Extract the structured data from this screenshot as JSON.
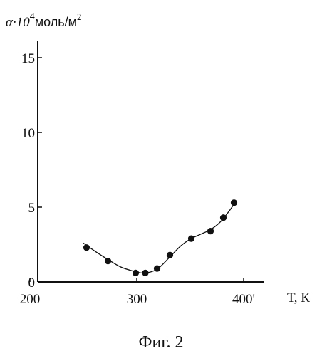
{
  "chart_data": {
    "type": "scatter",
    "title": "",
    "ylabel_prefix": "α·10",
    "ylabel_exponent": "4",
    "ylabel_unit": "моль/м",
    "ylabel_unit_exponent": "2",
    "xlabel": "Т, К",
    "xlim": [
      200,
      400
    ],
    "ylim": [
      0,
      15
    ],
    "xticks": [
      200,
      300,
      400
    ],
    "xtick_labels": [
      "200",
      "300",
      "400'"
    ],
    "yticks": [
      0,
      5,
      10,
      15
    ],
    "ytick_labels": [
      "0",
      "5",
      "10",
      "15"
    ],
    "grid": false,
    "legend": "none",
    "series": [
      {
        "marker": "dot",
        "x": [
          253,
          273,
          299,
          308,
          319,
          331,
          351,
          369,
          381,
          391
        ],
        "y": [
          2.3,
          1.4,
          0.6,
          0.6,
          0.9,
          1.8,
          2.9,
          3.4,
          4.3,
          5.3
        ]
      }
    ],
    "fit_curve": {
      "x": [
        250,
        260,
        273,
        285,
        298,
        305,
        312,
        320,
        330,
        341,
        351,
        360,
        369,
        378,
        386,
        392
      ],
      "y": [
        2.6,
        2.1,
        1.5,
        1.0,
        0.7,
        0.6,
        0.65,
        0.9,
        1.6,
        2.4,
        2.9,
        3.2,
        3.5,
        4.0,
        4.7,
        5.3
      ]
    }
  },
  "caption": "Фиг. 2",
  "colors": {
    "ink": "#111111",
    "background": "#ffffff"
  }
}
